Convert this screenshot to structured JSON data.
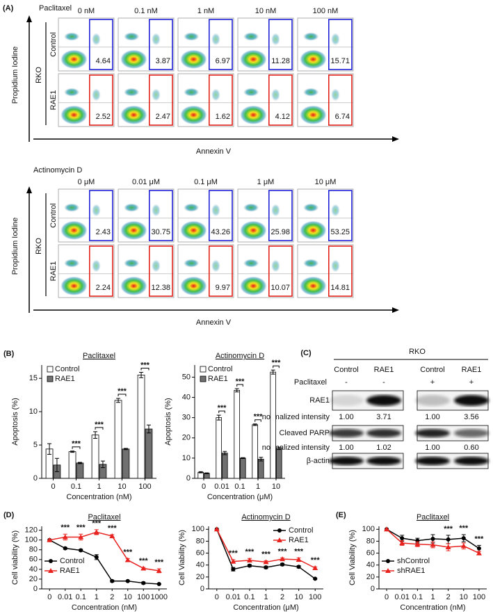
{
  "flow_cytometry": {
    "label": "(A)",
    "blocks": [
      {
        "drug": "Paclitaxel",
        "doses": [
          "0 nM",
          "0.1 nM",
          "1 nM",
          "10 nM",
          "100 nM"
        ],
        "cell_line": "RKO",
        "x_axis": "Annexin V",
        "y_axis": "Propidium Iodine",
        "rows": [
          {
            "name": "Control",
            "color": "#1f22d6",
            "values": [
              4.64,
              3.87,
              6.97,
              11.28,
              15.71
            ]
          },
          {
            "name": "RAE1",
            "color": "#e2231a",
            "values": [
              2.52,
              2.47,
              1.62,
              4.12,
              6.74
            ]
          }
        ]
      },
      {
        "drug": "Actinomycin D",
        "doses": [
          "0 μM",
          "0.01 μM",
          "0.1 μM",
          "1 μM",
          "10 μM"
        ],
        "cell_line": "RKO",
        "x_axis": "Annexin V",
        "y_axis": "Propidium Iodine",
        "rows": [
          {
            "name": "Control",
            "color": "#1f22d6",
            "values": [
              2.43,
              30.75,
              43.26,
              25.98,
              53.25
            ]
          },
          {
            "name": "RAE1",
            "color": "#e2231a",
            "values": [
              2.24,
              12.38,
              9.97,
              10.07,
              14.81
            ]
          }
        ]
      }
    ]
  },
  "western_blot": {
    "label": "(C)",
    "cell_line": "RKO",
    "columns": [
      "Control",
      "RAE1",
      "Control",
      "RAE1"
    ],
    "treatment": {
      "name": "Paclitaxel",
      "values": [
        "-",
        "-",
        "+",
        "+"
      ]
    },
    "bands": [
      {
        "name": "RAE1",
        "intensity_label": "normalized intensity",
        "intensities": [
          "1.00",
          "3.71",
          "1.00",
          "3.56"
        ]
      },
      {
        "name": "Cleaved PARP",
        "intensity_label": "normalized intensity",
        "intensities": [
          "1.00",
          "1.02",
          "1.00",
          "0.60"
        ]
      },
      {
        "name": "β-actin"
      }
    ]
  },
  "chart_data": [
    {
      "type": "bar",
      "panel_label": "(B)",
      "title": "Paclitaxel",
      "ylabel": "Apoptosis (%)",
      "xlabel": "Concentration (nM)",
      "categories": [
        "0",
        "0.1",
        "1",
        "10",
        "100"
      ],
      "series": [
        {
          "name": "Control",
          "color": "#ffffff",
          "values": [
            4.4,
            4.0,
            6.5,
            11.7,
            15.5
          ],
          "errors": [
            0.8,
            0.1,
            0.5,
            0.3,
            0.4
          ]
        },
        {
          "name": "RAE1",
          "color": "#707070",
          "values": [
            2.0,
            2.3,
            2.1,
            4.4,
            7.4
          ],
          "errors": [
            1.0,
            0.1,
            0.5,
            0.1,
            0.6
          ]
        }
      ],
      "significance": [
        null,
        "***",
        "***",
        "***",
        "***"
      ],
      "ylim": [
        0,
        17
      ],
      "yticks": [
        0,
        5,
        10,
        15
      ],
      "legend": "upper left"
    },
    {
      "type": "bar",
      "title": "Actinomycin D",
      "ylabel": "Apoptosis (%)",
      "xlabel": "Concentration (μM)",
      "categories": [
        "0",
        "0.01",
        "0.1",
        "1",
        "10"
      ],
      "series": [
        {
          "name": "Control",
          "color": "#ffffff",
          "values": [
            3.0,
            30.0,
            43.5,
            26.5,
            52.5
          ],
          "errors": [
            0.3,
            1.2,
            0.8,
            0.4,
            1.0
          ]
        },
        {
          "name": "RAE1",
          "color": "#707070",
          "values": [
            2.5,
            12.5,
            10.0,
            9.5,
            14.8
          ],
          "errors": [
            0.2,
            0.8,
            0.2,
            0.9,
            0.6
          ]
        }
      ],
      "significance": [
        null,
        "***",
        "***",
        "***",
        "***"
      ],
      "ylim": [
        0,
        56
      ],
      "yticks": [
        0,
        10,
        20,
        30,
        40,
        50
      ],
      "legend": "upper left"
    },
    {
      "type": "line",
      "panel_label": "(D)",
      "title": "Paclitaxel",
      "ylabel": "Cell viability (%)",
      "xlabel": "Concentration (nM)",
      "categories": [
        "0",
        "0.01",
        "0.1",
        "1",
        "2",
        "10",
        "100",
        "1000"
      ],
      "series": [
        {
          "name": "Control",
          "color": "#000000",
          "marker": "circle",
          "values": [
            100,
            83,
            79,
            65,
            16,
            16,
            12,
            10
          ],
          "errors": [
            0,
            2,
            2,
            5,
            2,
            1,
            2,
            1
          ]
        },
        {
          "name": "RAE1",
          "color": "#e8231f",
          "marker": "triangle",
          "values": [
            100,
            106,
            106,
            116,
            108,
            59,
            42,
            37
          ],
          "errors": [
            0,
            6,
            6,
            5,
            3,
            3,
            2,
            4
          ]
        }
      ],
      "significance": [
        null,
        "***",
        "***",
        "***",
        "***",
        "***",
        "***",
        "***"
      ],
      "ylim": [
        0,
        128
      ],
      "yticks": [
        0,
        20,
        40,
        60,
        80,
        100,
        120
      ],
      "legend": "lower left"
    },
    {
      "type": "line",
      "title": "Actinomycin D",
      "ylabel": "Cell Viability (%)",
      "xlabel": "Concentration (μM)",
      "categories": [
        "0",
        "0.01",
        "0.1",
        "1",
        "2",
        "10",
        "100"
      ],
      "series": [
        {
          "name": "Control",
          "color": "#000000",
          "marker": "circle",
          "values": [
            100,
            33,
            39,
            36,
            41,
            37,
            17
          ],
          "errors": [
            0,
            3,
            2,
            2,
            2,
            2,
            1
          ]
        },
        {
          "name": "RAE1",
          "color": "#e8231f",
          "marker": "triangle",
          "values": [
            100,
            46,
            48,
            45,
            50,
            49,
            35
          ],
          "errors": [
            0,
            3,
            3,
            2,
            2,
            3,
            2
          ]
        }
      ],
      "significance": [
        null,
        "***",
        "***",
        "***",
        "***",
        "***",
        "***"
      ],
      "ylim": [
        0,
        105
      ],
      "yticks": [
        0,
        20,
        40,
        60,
        80,
        100
      ],
      "legend": "upper right"
    },
    {
      "type": "line",
      "panel_label": "(E)",
      "title": "Paclitaxel",
      "ylabel": "Cell Viability (%)",
      "xlabel": "Concentration (nM)",
      "categories": [
        "0",
        "0.01",
        "0.1",
        "1",
        "2",
        "10",
        "100"
      ],
      "series": [
        {
          "name": "shControl",
          "color": "#000000",
          "marker": "circle",
          "values": [
            100,
            85,
            81,
            84,
            83,
            85,
            68
          ],
          "errors": [
            0,
            5,
            4,
            7,
            7,
            6,
            5
          ]
        },
        {
          "name": "shRAE1",
          "color": "#e8231f",
          "marker": "triangle",
          "values": [
            100,
            77,
            75,
            74,
            70,
            72,
            60
          ],
          "errors": [
            0,
            4,
            4,
            5,
            6,
            5,
            3
          ]
        }
      ],
      "significance": [
        null,
        null,
        null,
        null,
        "***",
        "***",
        "***"
      ],
      "ylim": [
        0,
        105
      ],
      "yticks": [
        0,
        20,
        40,
        60,
        80,
        100
      ],
      "legend": "lower left"
    }
  ]
}
